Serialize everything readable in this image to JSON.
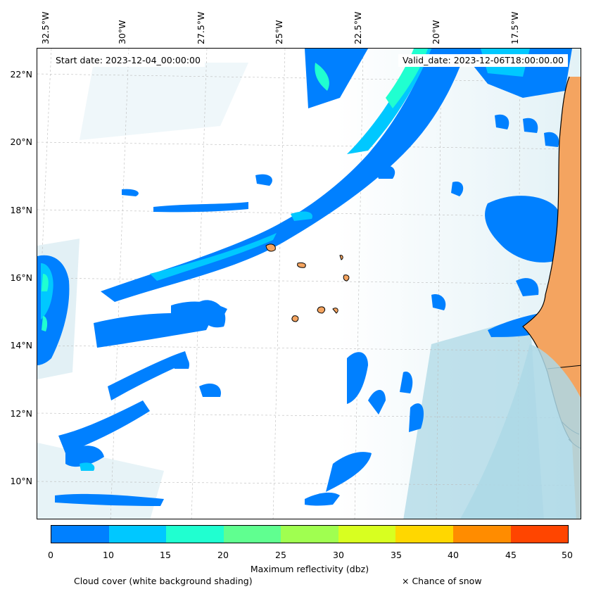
{
  "map": {
    "start_date": "Start date: 2023-12-04_00:00:00",
    "valid_date": "Valid_date: 2023-12-06T18:00:00.00",
    "lon_labels": [
      "32.5°W",
      "30°W",
      "27.5°W",
      "25°W",
      "22.5°W",
      "20°W",
      "17.5°W"
    ],
    "lat_labels": [
      "22°N",
      "20°N",
      "18°N",
      "16°N",
      "14°N",
      "12°N",
      "10°N"
    ],
    "land_color": "#f4a460",
    "ocean_cloud_color": "#add8e6"
  },
  "colorbar": {
    "title": "Maximum reflectivity (dbz)",
    "ticks": [
      "0",
      "10",
      "15",
      "20",
      "25",
      "30",
      "35",
      "40",
      "45",
      "50"
    ],
    "colors": [
      "#0080ff",
      "#00c8ff",
      "#20ffd0",
      "#60ff90",
      "#a0ff50",
      "#d8ff20",
      "#ffd700",
      "#ff8c00",
      "#ff4500"
    ]
  },
  "legend": {
    "cloud_cover": "Cloud cover (white background shading)",
    "snow": "× Chance of snow"
  }
}
